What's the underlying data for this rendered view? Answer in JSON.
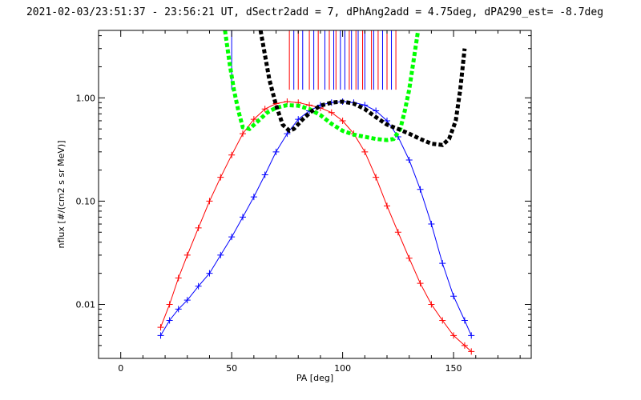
{
  "chart_data": {
    "type": "scatter",
    "title": "2021-02-03/23:51:37 - 23:56:21 UT, dSectr2add = 7, dPhAng2add = 4.75deg, dPA290_est=  -8.7deg",
    "xlabel": "PA [deg]",
    "ylabel": "nflux [#/(cm2 s sr MeV)]",
    "xlim": [
      -10,
      185
    ],
    "ylim": [
      0.003,
      4.5
    ],
    "y_scale": "log",
    "grid": false,
    "x_ticks": [
      "0",
      "50",
      "100",
      "150"
    ],
    "x_tick_values": [
      0,
      50,
      100,
      150
    ],
    "y_ticks": [
      "0.01",
      "0.10",
      "1.00"
    ],
    "y_tick_values": [
      0.01,
      0.1,
      1.0
    ],
    "colors": {
      "red": "#ff0000",
      "blue": "#0000ff",
      "green": "#00ff00",
      "black": "#000000"
    },
    "series": [
      {
        "color": "red",
        "style": "line+plus",
        "x": [
          18,
          22,
          26,
          30,
          35,
          40,
          45,
          50,
          55,
          60,
          65,
          70,
          75,
          80,
          85,
          90,
          95,
          100,
          105,
          110,
          115,
          120,
          125,
          130,
          135,
          140,
          145,
          150,
          155,
          158
        ],
        "y": [
          0.006,
          0.01,
          0.018,
          0.03,
          0.055,
          0.1,
          0.17,
          0.28,
          0.45,
          0.62,
          0.78,
          0.88,
          0.92,
          0.9,
          0.85,
          0.8,
          0.72,
          0.6,
          0.45,
          0.3,
          0.17,
          0.09,
          0.05,
          0.028,
          0.016,
          0.01,
          0.007,
          0.005,
          0.004,
          0.0035
        ]
      },
      {
        "color": "blue",
        "style": "line+plus",
        "x": [
          18,
          22,
          26,
          30,
          35,
          40,
          45,
          50,
          55,
          60,
          65,
          70,
          75,
          80,
          85,
          90,
          95,
          100,
          105,
          110,
          115,
          120,
          125,
          130,
          135,
          140,
          145,
          150,
          155,
          158
        ],
        "y": [
          0.005,
          0.007,
          0.009,
          0.011,
          0.015,
          0.02,
          0.03,
          0.045,
          0.07,
          0.11,
          0.18,
          0.3,
          0.45,
          0.62,
          0.75,
          0.85,
          0.9,
          0.92,
          0.9,
          0.85,
          0.75,
          0.6,
          0.42,
          0.25,
          0.13,
          0.06,
          0.025,
          0.012,
          0.007,
          0.005
        ]
      },
      {
        "color": "green",
        "style": "dotted-thick",
        "x": [
          47,
          49,
          51,
          53,
          55,
          58,
          62,
          66,
          70,
          75,
          80,
          85,
          90,
          95,
          100,
          105,
          110,
          115,
          120,
          123,
          126,
          128,
          130,
          132,
          134
        ],
        "y": [
          4.5,
          2.2,
          1.2,
          0.75,
          0.52,
          0.5,
          0.6,
          0.72,
          0.8,
          0.85,
          0.84,
          0.78,
          0.68,
          0.56,
          0.48,
          0.44,
          0.42,
          0.4,
          0.39,
          0.4,
          0.5,
          0.75,
          1.2,
          2.3,
          4.5
        ]
      },
      {
        "color": "black",
        "style": "dotted-thick",
        "x": [
          63,
          65,
          67,
          70,
          73,
          76,
          78,
          82,
          86,
          90,
          95,
          100,
          105,
          110,
          115,
          120,
          125,
          130,
          135,
          140,
          145,
          148,
          151,
          153,
          155
        ],
        "y": [
          4.5,
          2.6,
          1.5,
          0.85,
          0.55,
          0.48,
          0.5,
          0.62,
          0.74,
          0.84,
          0.9,
          0.92,
          0.88,
          0.78,
          0.65,
          0.55,
          0.5,
          0.45,
          0.4,
          0.36,
          0.35,
          0.4,
          0.6,
          1.2,
          3.0
        ]
      }
    ],
    "vertical_lines": [
      {
        "color": "blue",
        "x": [
          50,
          78,
          82,
          87,
          92,
          96,
          99,
          101,
          104,
          107,
          110,
          114,
          118,
          122
        ],
        "y_from": 1.2
      },
      {
        "color": "red",
        "x": [
          76,
          80,
          85,
          89,
          94,
          97,
          103,
          106,
          109,
          113,
          116,
          120,
          124
        ],
        "y_from": 1.2
      }
    ]
  }
}
